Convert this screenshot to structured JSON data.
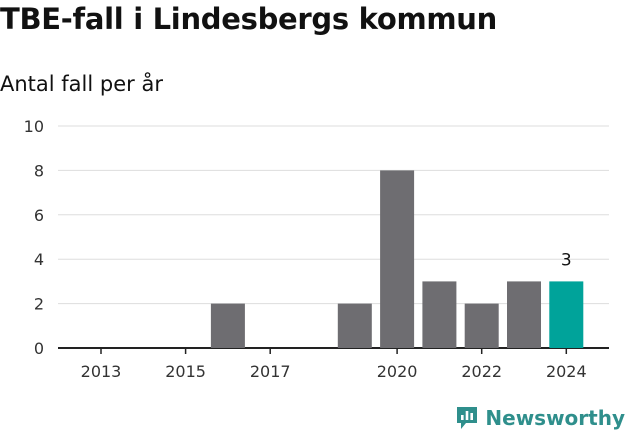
{
  "title": "TBE-fall i Lindesbergs kommun",
  "subtitle": "Antal fall per år",
  "chart_data": {
    "type": "bar",
    "title": "TBE-fall i Lindesbergs kommun",
    "ylabel": "Antal fall per år",
    "x": [
      2013,
      2014,
      2015,
      2016,
      2017,
      2018,
      2019,
      2020,
      2021,
      2022,
      2023,
      2024
    ],
    "values": [
      0,
      0,
      0,
      2,
      0,
      0,
      2,
      8,
      3,
      2,
      3,
      3
    ],
    "xticks": [
      "2013",
      "2015",
      "2017",
      "2020",
      "2022",
      "2024"
    ],
    "yticks": [
      "0",
      "2",
      "4",
      "6",
      "8",
      "10"
    ],
    "ylim": [
      0,
      10
    ],
    "grid": true,
    "bar_color": "#6e6d71",
    "highlight_color": "#00a39a",
    "highlight_index": 11,
    "annotations": [
      {
        "x": 2024,
        "label": "3"
      }
    ]
  },
  "brand": {
    "name": "Newsworthy",
    "icon": "newsworthy-logo-icon",
    "color": "#2f8f8c"
  }
}
